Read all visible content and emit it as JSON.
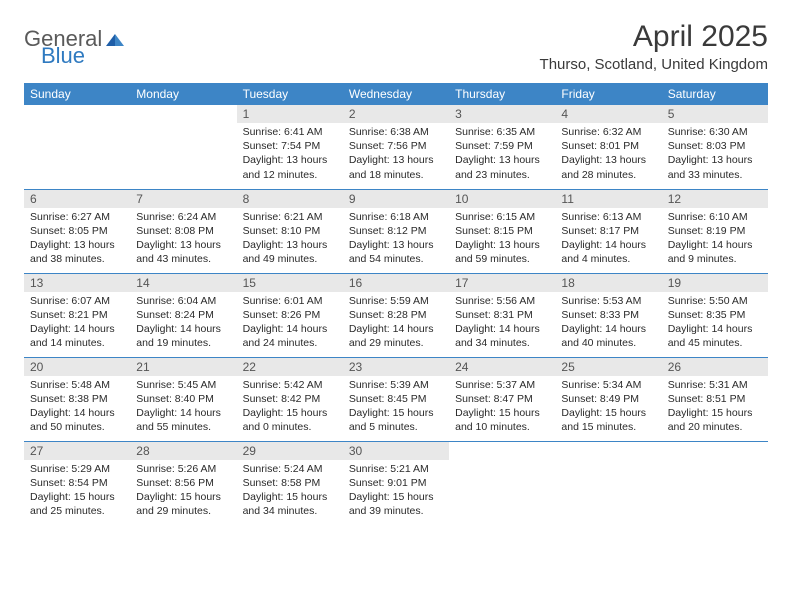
{
  "logo": {
    "word1": "General",
    "word2": "Blue"
  },
  "title": "April 2025",
  "subtitle": "Thurso, Scotland, United Kingdom",
  "colors": {
    "header_bg": "#3d85c6",
    "header_text": "#ffffff",
    "daynum_bg": "#e8e8e8",
    "row_divider": "#3d85c6",
    "text": "#2a2a2a",
    "logo_gray": "#5a5a5a",
    "logo_blue": "#2f7ac0"
  },
  "weekdays": [
    "Sunday",
    "Monday",
    "Tuesday",
    "Wednesday",
    "Thursday",
    "Friday",
    "Saturday"
  ],
  "weeks": [
    [
      null,
      null,
      {
        "num": "1",
        "sunrise": "6:41 AM",
        "sunset": "7:54 PM",
        "daylight": "13 hours and 12 minutes."
      },
      {
        "num": "2",
        "sunrise": "6:38 AM",
        "sunset": "7:56 PM",
        "daylight": "13 hours and 18 minutes."
      },
      {
        "num": "3",
        "sunrise": "6:35 AM",
        "sunset": "7:59 PM",
        "daylight": "13 hours and 23 minutes."
      },
      {
        "num": "4",
        "sunrise": "6:32 AM",
        "sunset": "8:01 PM",
        "daylight": "13 hours and 28 minutes."
      },
      {
        "num": "5",
        "sunrise": "6:30 AM",
        "sunset": "8:03 PM",
        "daylight": "13 hours and 33 minutes."
      }
    ],
    [
      {
        "num": "6",
        "sunrise": "6:27 AM",
        "sunset": "8:05 PM",
        "daylight": "13 hours and 38 minutes."
      },
      {
        "num": "7",
        "sunrise": "6:24 AM",
        "sunset": "8:08 PM",
        "daylight": "13 hours and 43 minutes."
      },
      {
        "num": "8",
        "sunrise": "6:21 AM",
        "sunset": "8:10 PM",
        "daylight": "13 hours and 49 minutes."
      },
      {
        "num": "9",
        "sunrise": "6:18 AM",
        "sunset": "8:12 PM",
        "daylight": "13 hours and 54 minutes."
      },
      {
        "num": "10",
        "sunrise": "6:15 AM",
        "sunset": "8:15 PM",
        "daylight": "13 hours and 59 minutes."
      },
      {
        "num": "11",
        "sunrise": "6:13 AM",
        "sunset": "8:17 PM",
        "daylight": "14 hours and 4 minutes."
      },
      {
        "num": "12",
        "sunrise": "6:10 AM",
        "sunset": "8:19 PM",
        "daylight": "14 hours and 9 minutes."
      }
    ],
    [
      {
        "num": "13",
        "sunrise": "6:07 AM",
        "sunset": "8:21 PM",
        "daylight": "14 hours and 14 minutes."
      },
      {
        "num": "14",
        "sunrise": "6:04 AM",
        "sunset": "8:24 PM",
        "daylight": "14 hours and 19 minutes."
      },
      {
        "num": "15",
        "sunrise": "6:01 AM",
        "sunset": "8:26 PM",
        "daylight": "14 hours and 24 minutes."
      },
      {
        "num": "16",
        "sunrise": "5:59 AM",
        "sunset": "8:28 PM",
        "daylight": "14 hours and 29 minutes."
      },
      {
        "num": "17",
        "sunrise": "5:56 AM",
        "sunset": "8:31 PM",
        "daylight": "14 hours and 34 minutes."
      },
      {
        "num": "18",
        "sunrise": "5:53 AM",
        "sunset": "8:33 PM",
        "daylight": "14 hours and 40 minutes."
      },
      {
        "num": "19",
        "sunrise": "5:50 AM",
        "sunset": "8:35 PM",
        "daylight": "14 hours and 45 minutes."
      }
    ],
    [
      {
        "num": "20",
        "sunrise": "5:48 AM",
        "sunset": "8:38 PM",
        "daylight": "14 hours and 50 minutes."
      },
      {
        "num": "21",
        "sunrise": "5:45 AM",
        "sunset": "8:40 PM",
        "daylight": "14 hours and 55 minutes."
      },
      {
        "num": "22",
        "sunrise": "5:42 AM",
        "sunset": "8:42 PM",
        "daylight": "15 hours and 0 minutes."
      },
      {
        "num": "23",
        "sunrise": "5:39 AM",
        "sunset": "8:45 PM",
        "daylight": "15 hours and 5 minutes."
      },
      {
        "num": "24",
        "sunrise": "5:37 AM",
        "sunset": "8:47 PM",
        "daylight": "15 hours and 10 minutes."
      },
      {
        "num": "25",
        "sunrise": "5:34 AM",
        "sunset": "8:49 PM",
        "daylight": "15 hours and 15 minutes."
      },
      {
        "num": "26",
        "sunrise": "5:31 AM",
        "sunset": "8:51 PM",
        "daylight": "15 hours and 20 minutes."
      }
    ],
    [
      {
        "num": "27",
        "sunrise": "5:29 AM",
        "sunset": "8:54 PM",
        "daylight": "15 hours and 25 minutes."
      },
      {
        "num": "28",
        "sunrise": "5:26 AM",
        "sunset": "8:56 PM",
        "daylight": "15 hours and 29 minutes."
      },
      {
        "num": "29",
        "sunrise": "5:24 AM",
        "sunset": "8:58 PM",
        "daylight": "15 hours and 34 minutes."
      },
      {
        "num": "30",
        "sunrise": "5:21 AM",
        "sunset": "9:01 PM",
        "daylight": "15 hours and 39 minutes."
      },
      null,
      null,
      null
    ]
  ],
  "labels": {
    "sunrise": "Sunrise:",
    "sunset": "Sunset:",
    "daylight": "Daylight:"
  }
}
